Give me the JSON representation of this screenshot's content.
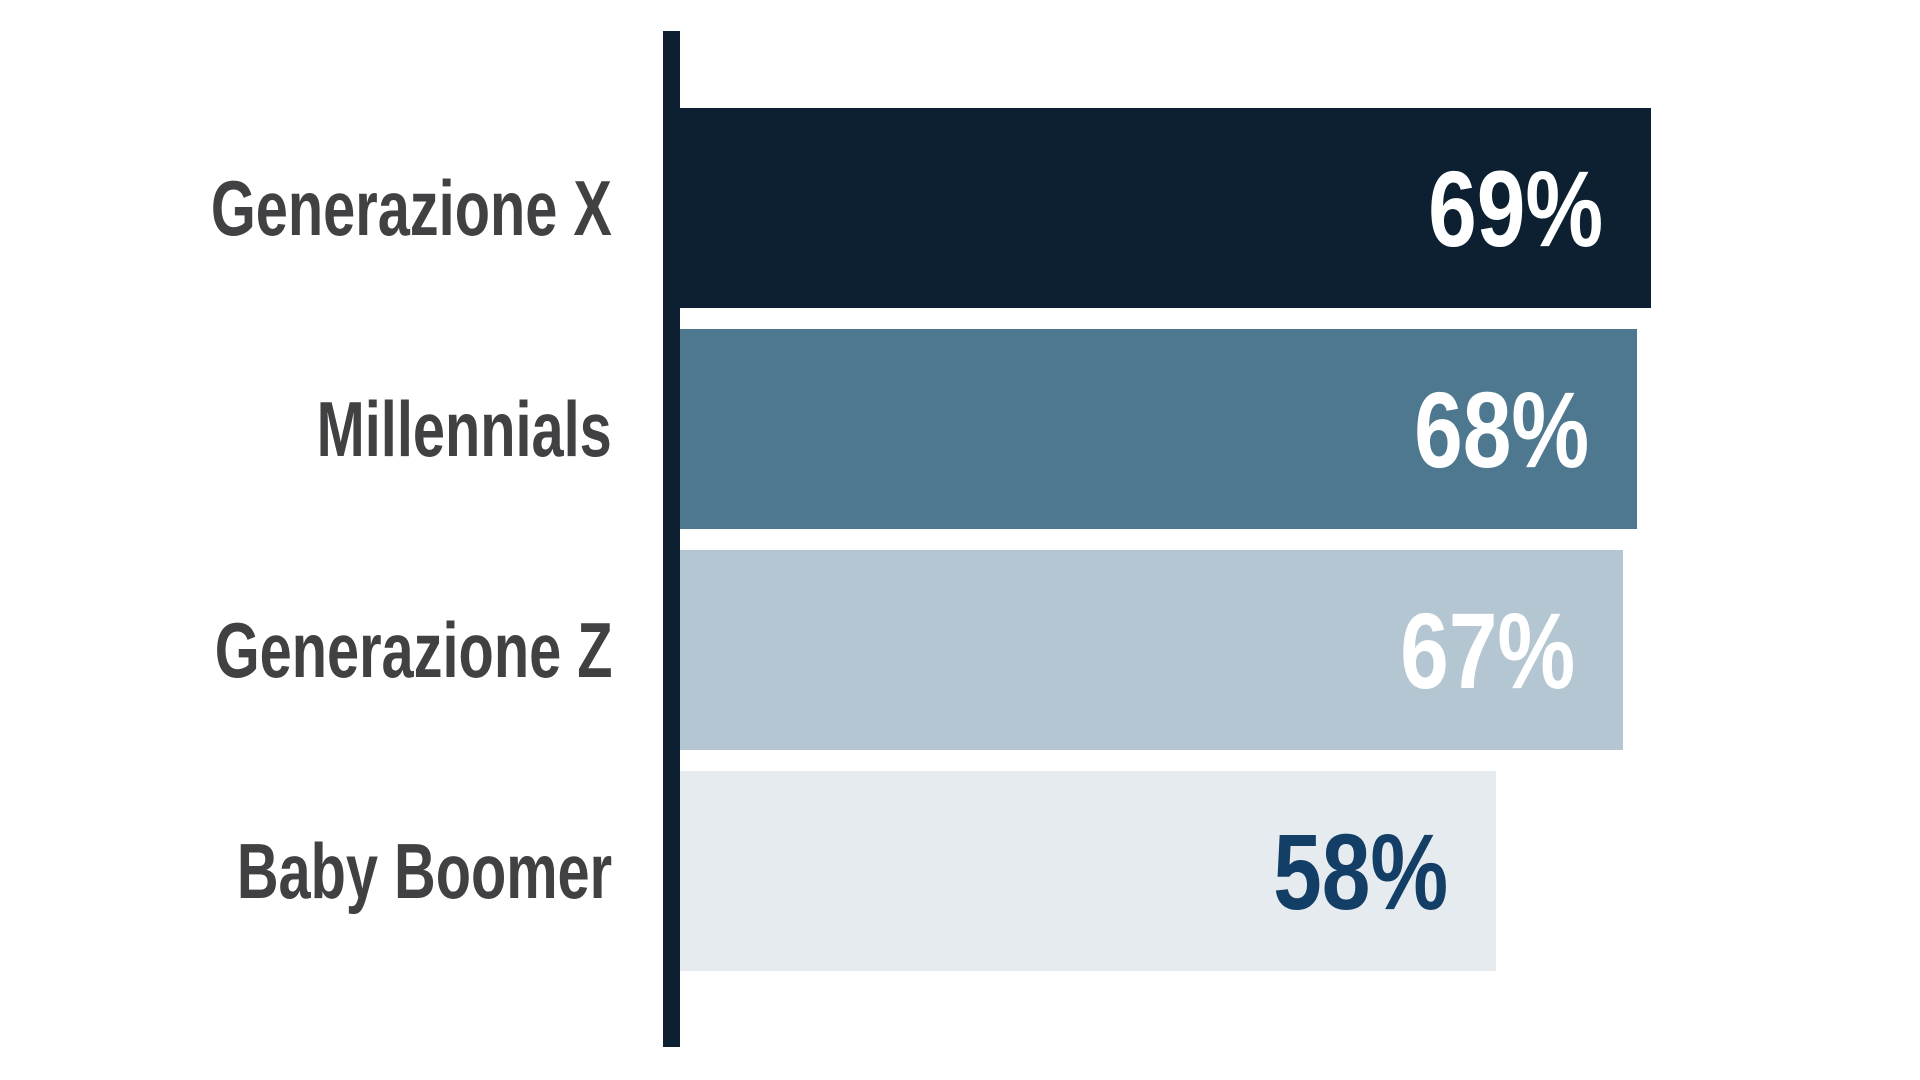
{
  "chart_data": {
    "type": "bar",
    "orientation": "horizontal",
    "categories": [
      "Generazione X",
      "Millennials",
      "Generazione Z",
      "Baby Boomer"
    ],
    "values": [
      69,
      68,
      67,
      58
    ],
    "value_labels": [
      "69%",
      "68%",
      "67%",
      "58%"
    ],
    "unit": "%",
    "grid": false,
    "legend": false,
    "bar_colors": [
      "#0c2031",
      "#4e788f",
      "#b4c6d2",
      "#e6ebf0"
    ],
    "value_text_colors": [
      "#ffffff",
      "#ffffff",
      "#ffffff",
      "#133f66"
    ],
    "category_label_color": "#414042",
    "axis_line_color": "#0c2031",
    "background_color": "#ffffff"
  }
}
